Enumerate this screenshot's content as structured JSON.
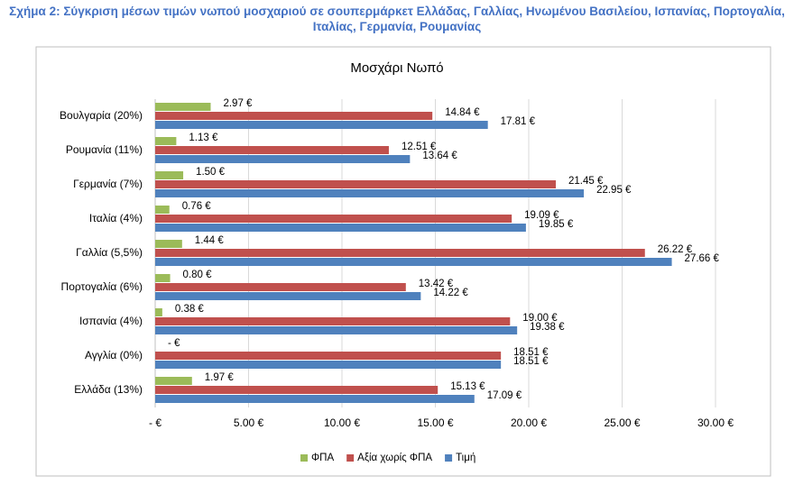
{
  "chart_data": {
    "type": "hbar",
    "caption": "Σχήμα 2: Σύγκριση μέσων τιμών νωπού μοσχαριού σε σουπερμάρκετ Ελλάδας, Γαλλίας, Ηνωμένου Βασιλείου, Ισπανίας, Πορτογαλία, Ιταλίας, Γερμανία, Ρουμανίας",
    "title": "Μοσχάρι Νωπό",
    "categories": [
      "Βουλγαρία (20%)",
      "Ρουμανία (11%)",
      "Γερμανία (7%)",
      "Ιταλία (4%)",
      "Γαλλία (5,5%)",
      "Πορτογαλία (6%)",
      "Ισπανία (4%)",
      "Αγγλία (0%)",
      "Ελλάδα (13%)"
    ],
    "series": [
      {
        "name": "ΦΠΑ",
        "color": "#9bbb59",
        "values": [
          2.97,
          1.13,
          1.5,
          0.76,
          1.44,
          0.8,
          0.38,
          0,
          1.97
        ],
        "value_labels": [
          "2.97 €",
          "1.13 €",
          "1.50 €",
          "0.76 €",
          "1.44 €",
          "0.80 €",
          "0.38 €",
          "-  €",
          "1.97 €"
        ]
      },
      {
        "name": "Αξία χωρίς ΦΠΑ",
        "color": "#c0504d",
        "values": [
          14.84,
          12.51,
          21.45,
          19.09,
          26.22,
          13.42,
          19.0,
          18.51,
          15.13
        ],
        "value_labels": [
          "14.84 €",
          "12.51 €",
          "21.45 €",
          "19.09 €",
          "26.22 €",
          "13.42 €",
          "19.00 €",
          "18.51 €",
          "15.13 €"
        ]
      },
      {
        "name": "Τιμή",
        "color": "#4f81bd",
        "values": [
          17.81,
          13.64,
          22.95,
          19.85,
          27.66,
          14.22,
          19.38,
          18.51,
          17.09
        ],
        "value_labels": [
          "17.81 €",
          "13.64 €",
          "22.95 €",
          "19.85 €",
          "27.66 €",
          "14.22 €",
          "19.38 €",
          "18.51 €",
          "17.09 €"
        ]
      }
    ],
    "xlim": [
      0,
      30
    ],
    "xticks": [
      {
        "value": 0,
        "label": "-  €"
      },
      {
        "value": 5,
        "label": "5.00 €"
      },
      {
        "value": 10,
        "label": "10.00 €"
      },
      {
        "value": 15,
        "label": "15.00 €"
      },
      {
        "value": 20,
        "label": "20.00 €"
      },
      {
        "value": 25,
        "label": "25.00 €"
      },
      {
        "value": 30,
        "label": "30.00 €"
      }
    ],
    "grid": true,
    "legend": "bottom"
  }
}
